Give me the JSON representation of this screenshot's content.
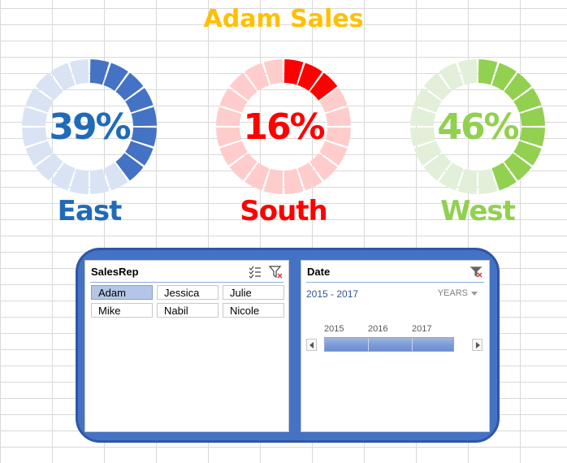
{
  "title": "Adam Sales",
  "gauges": [
    {
      "region": "East",
      "percent_label": "39%",
      "value": 0.39,
      "color": "#4472c4",
      "track_color": "#dae3f3",
      "text_color": "#1f6bb8"
    },
    {
      "region": "South",
      "percent_label": "16%",
      "value": 0.16,
      "color": "#ff0000",
      "track_color": "#ffcccc",
      "text_color": "#ff0000"
    },
    {
      "region": "West",
      "percent_label": "46%",
      "value": 0.46,
      "color": "#92d050",
      "track_color": "#e2f0d9",
      "text_color": "#92d050"
    }
  ],
  "salesrep_slicer": {
    "header": "SalesRep",
    "items": [
      "Adam",
      "Jessica",
      "Julie",
      "Mike",
      "Nabil",
      "Nicole"
    ],
    "selected": "Adam",
    "multiselect_icon": "multi-select-icon",
    "clear_filter_icon": "clear-filter-icon"
  },
  "date_timeline": {
    "header": "Date",
    "range": "2015 - 2017",
    "period": "YEARS",
    "years": [
      "2015",
      "2016",
      "2017"
    ],
    "clear_filter_icon": "clear-filter-icon"
  }
}
